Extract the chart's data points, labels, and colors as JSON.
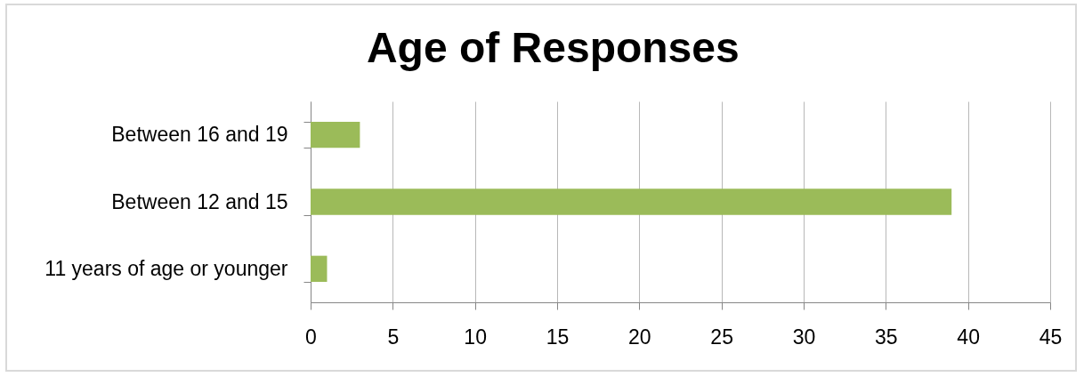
{
  "chart_data": {
    "type": "bar",
    "title": "Age of Responses",
    "orientation": "horizontal",
    "categories": [
      "Between 16 and 19",
      "Between 12 and 15",
      "11 years of age or younger"
    ],
    "values": [
      3,
      39,
      1
    ],
    "color": "#9bbb59",
    "xlim": [
      0,
      45
    ],
    "xticks": [
      0,
      5,
      10,
      15,
      20,
      25,
      30,
      35,
      40,
      45
    ],
    "grid": "x"
  }
}
